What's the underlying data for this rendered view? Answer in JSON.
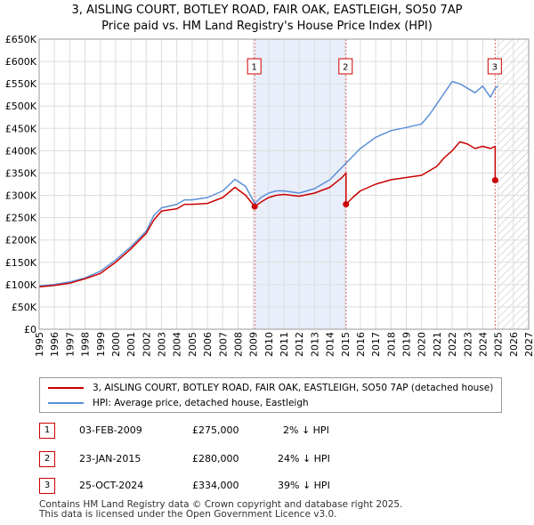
{
  "chart_data": {
    "type": "line",
    "title": "3, AISLING COURT, BOTLEY ROAD, FAIR OAK, EASTLEIGH, SO50 7AP",
    "subtitle": "Price paid vs. HM Land Registry's House Price Index (HPI)",
    "xlabel": "",
    "ylabel": "",
    "xlim": [
      1995,
      2027
    ],
    "ylim": [
      0,
      650000
    ],
    "x_ticks": [
      1995,
      1996,
      1997,
      1998,
      1999,
      2000,
      2001,
      2002,
      2003,
      2004,
      2005,
      2006,
      2007,
      2008,
      2009,
      2010,
      2011,
      2012,
      2013,
      2014,
      2015,
      2016,
      2017,
      2018,
      2019,
      2020,
      2021,
      2022,
      2023,
      2024,
      2025,
      2026,
      2027
    ],
    "y_ticks": [
      0,
      50000,
      100000,
      150000,
      200000,
      250000,
      300000,
      350000,
      400000,
      450000,
      500000,
      550000,
      600000,
      650000
    ],
    "y_tick_labels": [
      "£0",
      "£50K",
      "£100K",
      "£150K",
      "£200K",
      "£250K",
      "£300K",
      "£350K",
      "£400K",
      "£450K",
      "£500K",
      "£550K",
      "£600K",
      "£650K"
    ],
    "series": [
      {
        "name": "3, AISLING COURT, BOTLEY ROAD, FAIR OAK, EASTLEIGH, SO50 7AP (detached house)",
        "color": "#cc0000",
        "x": [
          1995.0,
          1996.0,
          1997.0,
          1998.0,
          1999.0,
          2000.0,
          2001.0,
          2002.0,
          2002.5,
          2003.0,
          2004.0,
          2004.5,
          2005.0,
          2006.0,
          2007.0,
          2007.8,
          2008.5,
          2009.09,
          2009.5,
          2010.0,
          2010.5,
          2011.0,
          2012.0,
          2013.0,
          2014.0,
          2014.8,
          2015.06,
          2015.06,
          2015.5,
          2016.0,
          2017.0,
          2018.0,
          2019.0,
          2020.0,
          2020.5,
          2021.0,
          2021.5,
          2022.0,
          2022.5,
          2023.0,
          2023.5,
          2024.0,
          2024.5,
          2024.81,
          2024.81,
          2025.0
        ],
        "values": [
          95000,
          98000,
          103000,
          113000,
          125000,
          150000,
          180000,
          215000,
          245000,
          265000,
          270000,
          280000,
          280000,
          282000,
          295000,
          318000,
          300000,
          275000,
          285000,
          295000,
          300000,
          302000,
          298000,
          305000,
          318000,
          340000,
          350000,
          280000,
          295000,
          310000,
          325000,
          335000,
          340000,
          345000,
          355000,
          365000,
          385000,
          400000,
          420000,
          415000,
          405000,
          410000,
          405000,
          410000,
          334000,
          330000
        ]
      },
      {
        "name": "HPI: Average price, detached house, Eastleigh",
        "color": "#5b8fd6",
        "x": [
          1995.0,
          1996.0,
          1997.0,
          1998.0,
          1999.0,
          2000.0,
          2001.0,
          2002.0,
          2002.5,
          2003.0,
          2004.0,
          2004.5,
          2005.0,
          2006.0,
          2007.0,
          2007.8,
          2008.5,
          2009.09,
          2009.5,
          2010.0,
          2010.5,
          2011.0,
          2012.0,
          2013.0,
          2014.0,
          2015.0,
          2016.0,
          2017.0,
          2018.0,
          2019.0,
          2020.0,
          2020.5,
          2021.0,
          2021.5,
          2022.0,
          2022.5,
          2023.0,
          2023.5,
          2024.0,
          2024.5,
          2024.81,
          2025.0
        ],
        "values": [
          97000,
          100000,
          106000,
          115000,
          130000,
          155000,
          185000,
          220000,
          255000,
          272000,
          280000,
          290000,
          290000,
          295000,
          310000,
          336000,
          320000,
          282000,
          295000,
          305000,
          310000,
          310000,
          305000,
          315000,
          335000,
          370000,
          405000,
          430000,
          445000,
          452000,
          460000,
          480000,
          505000,
          530000,
          555000,
          550000,
          540000,
          530000,
          545000,
          520000,
          540000,
          545000
        ]
      }
    ],
    "annotations": [
      {
        "label": "1",
        "x": 2009.09
      },
      {
        "label": "2",
        "x": 2015.06
      },
      {
        "label": "3",
        "x": 2024.81
      }
    ],
    "sale_points": [
      {
        "x": 2009.09,
        "y": 275000
      },
      {
        "x": 2015.06,
        "y": 280000
      },
      {
        "x": 2024.81,
        "y": 334000
      }
    ],
    "shaded_range": [
      2009.09,
      2015.06
    ],
    "hatched_range": [
      2025.0,
      2027
    ]
  },
  "header": {
    "title": "3, AISLING COURT, BOTLEY ROAD, FAIR OAK, EASTLEIGH, SO50 7AP",
    "subtitle": "Price paid vs. HM Land Registry's House Price Index (HPI)"
  },
  "legend": {
    "red_label": "3, AISLING COURT, BOTLEY ROAD, FAIR OAK, EASTLEIGH, SO50 7AP (detached house)",
    "blue_label": "HPI: Average price, detached house, Eastleigh"
  },
  "transactions": [
    {
      "num": "1",
      "date": "03-FEB-2009",
      "price": "£275,000",
      "hpi": "2% ↓ HPI"
    },
    {
      "num": "2",
      "date": "23-JAN-2015",
      "price": "£280,000",
      "hpi": "24% ↓ HPI"
    },
    {
      "num": "3",
      "date": "25-OCT-2024",
      "price": "£334,000",
      "hpi": "39% ↓ HPI"
    }
  ],
  "footer": {
    "line1": "Contains HM Land Registry data © Crown copyright and database right 2025.",
    "line2": "This data is licensed under the Open Government Licence v3.0."
  }
}
